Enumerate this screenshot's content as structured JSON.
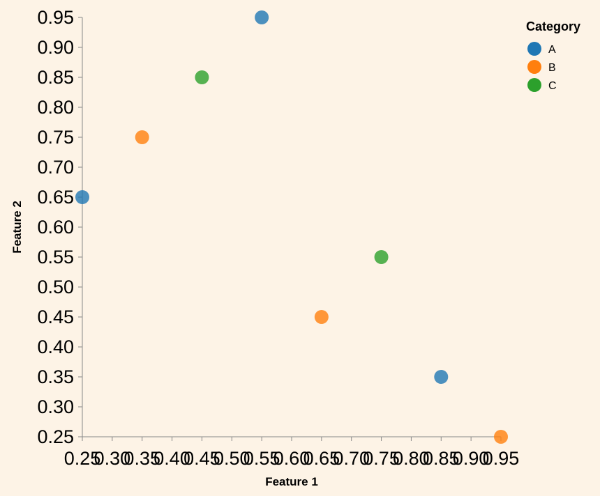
{
  "chart_data": {
    "type": "scatter",
    "xlabel": "Feature 1",
    "ylabel": "Feature 2",
    "xlim": [
      0.25,
      0.95
    ],
    "ylim": [
      0.25,
      0.95
    ],
    "x_ticks": [
      "0.25",
      "0.30",
      "0.35",
      "0.40",
      "0.45",
      "0.50",
      "0.55",
      "0.60",
      "0.65",
      "0.70",
      "0.75",
      "0.80",
      "0.85",
      "0.90",
      "0.95"
    ],
    "y_ticks": [
      "0.25",
      "0.30",
      "0.35",
      "0.40",
      "0.45",
      "0.50",
      "0.55",
      "0.60",
      "0.65",
      "0.70",
      "0.75",
      "0.80",
      "0.85",
      "0.90",
      "0.95"
    ],
    "grid": false,
    "legend": {
      "title": "Category",
      "placement": "top-right"
    },
    "series": [
      {
        "name": "A",
        "color": "#1f77b4",
        "points": [
          {
            "x": 0.25,
            "y": 0.65
          },
          {
            "x": 0.55,
            "y": 0.95
          },
          {
            "x": 0.85,
            "y": 0.35
          }
        ]
      },
      {
        "name": "B",
        "color": "#ff7f0e",
        "points": [
          {
            "x": 0.35,
            "y": 0.75
          },
          {
            "x": 0.65,
            "y": 0.45
          },
          {
            "x": 0.95,
            "y": 0.25
          }
        ]
      },
      {
        "name": "C",
        "color": "#2ca02c",
        "points": [
          {
            "x": 0.45,
            "y": 0.85
          },
          {
            "x": 0.75,
            "y": 0.55
          }
        ]
      }
    ]
  }
}
